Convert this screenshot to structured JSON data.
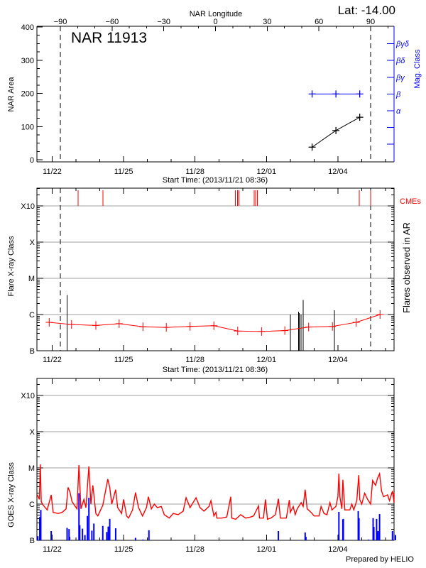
{
  "header": {
    "lat_label": "Lat: -14.00",
    "footer": "Prepared by HELIO"
  },
  "colors": {
    "axis": "#000000",
    "grid": "#a0a0a0",
    "flux_long": "#ff0000",
    "flux_short": "#0000ff",
    "mag_class": "#0000ff",
    "cme": "#ff0000",
    "background_flux": "#ff0000",
    "flares": "#000000"
  },
  "time_axis": {
    "start_label": "Start Time: (2013/11/21 08:36)",
    "xlim": [
      "11/21 08:36",
      "12/06 08:36"
    ],
    "year": 2013,
    "ticks": [
      {
        "label": "11/22",
        "t": "11/22 00:00"
      },
      {
        "label": "11/25",
        "t": "11/25 00:00"
      },
      {
        "label": "11/28",
        "t": "11/28 00:00"
      },
      {
        "label": "12/01",
        "t": "12/01 00:00"
      },
      {
        "label": "12/04",
        "t": "12/04 00:00"
      }
    ]
  },
  "chart_data": [
    {
      "type": "line",
      "title": "NAR 11913",
      "ylabel": "NAR Area",
      "ylim": [
        0,
        400
      ],
      "yticks": [
        0,
        100,
        200,
        300,
        400
      ],
      "top_axis": {
        "label": "NAR Longitude",
        "ticks": [
          -90,
          -60,
          -30,
          0,
          30,
          60,
          90
        ],
        "limb_times": [
          "11/22 08:15",
          "12/05 09:00"
        ]
      },
      "area_series": {
        "x": [
          "12/02 22:00",
          "12/03 22:00",
          "12/04 22:00"
        ],
        "values": [
          38,
          88,
          128
        ]
      },
      "right_axis": {
        "label": "Mag. Class",
        "classes": [
          "α",
          "β",
          "βγ",
          "βδ",
          "βγδ"
        ]
      },
      "mag_class_series": {
        "x": [
          "12/02 22:00",
          "12/03 22:00",
          "12/04 22:00"
        ],
        "values": [
          "β",
          "β",
          "β"
        ]
      }
    },
    {
      "type": "bar",
      "ylabel": "Flare X-ray Class",
      "right_label": "Flares observed in AR",
      "scale": "log",
      "class_ticks": [
        {
          "label": "B",
          "flux": 1e-07
        },
        {
          "label": "C",
          "flux": 1e-06
        },
        {
          "label": "M",
          "flux": 1e-05
        },
        {
          "label": "X",
          "flux": 0.0001
        },
        {
          "label": "X10",
          "flux": 0.001
        }
      ],
      "cme_label": "CMEs",
      "cmes": [
        "11/23 02:00",
        "11/24 03:00",
        "11/29 16:30",
        "11/29 18:50",
        "11/29 20:10",
        "11/30 11:45",
        "11/30 13:10",
        "11/30 14:40",
        "12/04 21:40",
        "12/05 09:00"
      ],
      "flares": [
        {
          "t": "11/22 15:00",
          "flux": 3.5e-06
        },
        {
          "t": "12/02 00:15",
          "flux": 1e-06
        },
        {
          "t": "12/02 08:20",
          "flux": 1.2e-06
        },
        {
          "t": "12/02 09:10",
          "flux": 1.1e-06
        },
        {
          "t": "12/02 11:00",
          "flux": 1e-06
        },
        {
          "t": "12/02 13:10",
          "flux": 2.5e-06
        },
        {
          "t": "12/03 20:20",
          "flux": 1.3e-06
        }
      ],
      "background_series": [
        [
          "11/21 21:00",
          6.1e-07
        ],
        [
          "11/22 19:30",
          5.3e-07
        ],
        [
          "11/23 20:00",
          5e-07
        ],
        [
          "11/24 19:30",
          5.6e-07
        ],
        [
          "11/25 19:30",
          4.6e-07
        ],
        [
          "11/26 19:00",
          4.4e-07
        ],
        [
          "11/27 19:00",
          4.7e-07
        ],
        [
          "11/28 19:00",
          4.9e-07
        ],
        [
          "11/29 19:00",
          3.5e-07
        ],
        [
          "11/30 19:00",
          3.4e-07
        ],
        [
          "12/01 18:30",
          3.6e-07
        ],
        [
          "12/02 18:30",
          4.5e-07
        ],
        [
          "12/03 18:30",
          4.7e-07
        ],
        [
          "12/04 18:30",
          6.1e-07
        ],
        [
          "12/05 18:30",
          1e-06
        ]
      ]
    },
    {
      "type": "line",
      "ylabel": "GOES X-ray Class",
      "scale": "log",
      "class_ticks": [
        {
          "label": "B",
          "flux": 1e-07
        },
        {
          "label": "C",
          "flux": 1e-06
        },
        {
          "label": "M",
          "flux": 1e-05
        },
        {
          "label": "X",
          "flux": 0.0001
        },
        {
          "label": "X10",
          "flux": 0.001
        }
      ],
      "long_channel": [
        [
          "11/21 09:00",
          1.8e-06
        ],
        [
          "11/21 11:00",
          1.35e-06
        ],
        [
          "11/21 12:00",
          1.25e-05
        ],
        [
          "11/21 13:00",
          1.16e-06
        ],
        [
          "11/21 15:00",
          9.3e-07
        ],
        [
          "11/21 19:00",
          6.9e-07
        ],
        [
          "11/21 23:00",
          1.8e-06
        ],
        [
          "11/22 01:00",
          5.9e-07
        ],
        [
          "11/22 06:00",
          5.5e-07
        ],
        [
          "11/22 10:00",
          5.9e-07
        ],
        [
          "11/22 14:00",
          7.4e-07
        ],
        [
          "11/22 16:00",
          2.9e-06
        ],
        [
          "11/22 18:00",
          2.1e-06
        ],
        [
          "11/22 20:00",
          1.16e-06
        ],
        [
          "11/23 01:00",
          7.4e-07
        ],
        [
          "11/23 03:00",
          1.2e-05
        ],
        [
          "11/23 05:00",
          7.4e-07
        ],
        [
          "11/23 08:00",
          1.35e-06
        ],
        [
          "11/23 10:00",
          8e-07
        ],
        [
          "11/23 13:00",
          1.1e-05
        ],
        [
          "11/23 15:00",
          1e-06
        ],
        [
          "11/23 17:00",
          3.3e-06
        ],
        [
          "11/23 20:00",
          5.5e-07
        ],
        [
          "11/23 22:00",
          4.7e-07
        ],
        [
          "11/24 03:00",
          9.3e-07
        ],
        [
          "11/24 08:00",
          4.9e-06
        ],
        [
          "11/24 10:00",
          2.9e-06
        ],
        [
          "11/24 12:00",
          1e-06
        ],
        [
          "11/24 16:00",
          2.5e-06
        ],
        [
          "11/24 18:00",
          8e-07
        ],
        [
          "11/24 22:00",
          5.5e-07
        ],
        [
          "11/25 00:00",
          1.35e-06
        ],
        [
          "11/25 03:00",
          4.7e-07
        ],
        [
          "11/25 05:00",
          4.1e-07
        ],
        [
          "11/25 09:00",
          6.9e-07
        ],
        [
          "11/25 12:00",
          2.1e-06
        ],
        [
          "11/25 15:00",
          8e-07
        ],
        [
          "11/25 19:00",
          4.7e-07
        ],
        [
          "11/25 23:00",
          8e-07
        ],
        [
          "11/26 01:00",
          1.6e-06
        ],
        [
          "11/26 04:00",
          7.4e-07
        ],
        [
          "11/26 07:00",
          1e-06
        ],
        [
          "11/26 10:00",
          8e-07
        ],
        [
          "11/26 14:00",
          8.6e-07
        ],
        [
          "11/26 17:00",
          5.1e-07
        ],
        [
          "11/26 22:00",
          4.1e-07
        ],
        [
          "11/27 02:00",
          5.5e-07
        ],
        [
          "11/27 07:00",
          5.1e-07
        ],
        [
          "11/27 12:00",
          6.4e-07
        ],
        [
          "11/27 15:00",
          1.5e-06
        ],
        [
          "11/27 19:00",
          8e-07
        ],
        [
          "11/28 01:00",
          1.5e-06
        ],
        [
          "11/28 05:00",
          8e-07
        ],
        [
          "11/28 09:00",
          6.4e-07
        ],
        [
          "11/28 14:00",
          8.6e-07
        ],
        [
          "11/28 16:00",
          1.25e-06
        ],
        [
          "11/28 19:00",
          4.7e-07
        ],
        [
          "11/28 21:00",
          5.9e-07
        ],
        [
          "11/28 22:00",
          4.1e-07
        ],
        [
          "11/29 03:00",
          4.1e-07
        ],
        [
          "11/29 08:00",
          4.4e-07
        ],
        [
          "11/29 12:00",
          1.6e-06
        ],
        [
          "11/29 13:00",
          4.1e-07
        ],
        [
          "11/29 17:00",
          3.8e-07
        ],
        [
          "11/29 22:00",
          5.1e-07
        ],
        [
          "11/30 03:00",
          4.1e-07
        ],
        [
          "11/30 08:00",
          4.4e-07
        ],
        [
          "11/30 11:00",
          4.7e-07
        ],
        [
          "11/30 16:00",
          8.9e-07
        ],
        [
          "11/30 17:00",
          4.1e-07
        ],
        [
          "11/30 21:00",
          4.1e-07
        ],
        [
          "11/30 23:00",
          1.35e-06
        ],
        [
          "12/01 01:00",
          3.8e-07
        ],
        [
          "12/01 05:00",
          4.2e-07
        ],
        [
          "12/01 09:00",
          5.1e-07
        ],
        [
          "12/01 12:00",
          1.4e-06
        ],
        [
          "12/01 14:00",
          4.1e-07
        ],
        [
          "12/01 20:00",
          4.1e-07
        ],
        [
          "12/01 23:00",
          1.3e-06
        ],
        [
          "12/02 00:00",
          5.9e-07
        ],
        [
          "12/02 03:00",
          8.6e-07
        ],
        [
          "12/02 05:00",
          5.1e-07
        ],
        [
          "12/02 07:00",
          7.4e-07
        ],
        [
          "12/02 11:00",
          1.1e-06
        ],
        [
          "12/02 13:00",
          8.6e-07
        ],
        [
          "12/02 15:00",
          2.5e-06
        ],
        [
          "12/02 17:00",
          7.4e-07
        ],
        [
          "12/02 21:00",
          5.9e-07
        ],
        [
          "12/03 00:00",
          4.7e-07
        ],
        [
          "12/03 05:00",
          4.7e-07
        ],
        [
          "12/03 07:00",
          8.6e-07
        ],
        [
          "12/03 10:00",
          5.5e-07
        ],
        [
          "12/03 13:00",
          5.1e-07
        ],
        [
          "12/03 16:00",
          1.1e-06
        ],
        [
          "12/03 18:00",
          6.9e-07
        ],
        [
          "12/03 22:00",
          8.6e-07
        ],
        [
          "12/04 00:00",
          1.6e-06
        ],
        [
          "12/04 01:00",
          6.9e-06
        ],
        [
          "12/04 02:00",
          1.6e-06
        ],
        [
          "12/04 04:00",
          7.4e-07
        ],
        [
          "12/04 05:00",
          4.7e-06
        ],
        [
          "12/04 07:00",
          6.9e-07
        ],
        [
          "12/04 12:00",
          6.9e-07
        ],
        [
          "12/04 14:00",
          1e-06
        ],
        [
          "12/04 16:00",
          6.9e-07
        ],
        [
          "12/04 19:00",
          1.25e-06
        ],
        [
          "12/04 21:00",
          6.3e-06
        ],
        [
          "12/04 22:00",
          1.35e-06
        ],
        [
          "12/05 00:00",
          1e-06
        ],
        [
          "12/05 03:00",
          2e-06
        ],
        [
          "12/05 06:00",
          1.35e-06
        ],
        [
          "12/05 09:00",
          1e-06
        ],
        [
          "12/05 11:00",
          4.5e-06
        ],
        [
          "12/05 14:00",
          3.3e-06
        ],
        [
          "12/05 16:00",
          5.2e-06
        ],
        [
          "12/05 18:00",
          6.9e-06
        ],
        [
          "12/05 20:00",
          2.3e-06
        ],
        [
          "12/05 22:00",
          1.6e-06
        ],
        [
          "12/06 02:00",
          1.8e-06
        ],
        [
          "12/06 04:00",
          1.25e-06
        ],
        [
          "12/06 07:00",
          2.3e-06
        ],
        [
          "12/06 09:00",
          1.1e-06
        ],
        [
          "12/06 10:00",
          2e-06
        ]
      ],
      "short_channel": [
        [
          "11/21 09:30",
          1.3e-07
        ],
        [
          "11/21 11:30",
          4.4e-07
        ],
        [
          "11/21 12:30",
          6.9e-07
        ],
        [
          "11/21 23:00",
          1.8e-07
        ],
        [
          "11/22 15:00",
          2.2e-07
        ],
        [
          "11/22 17:00",
          2.05e-07
        ],
        [
          "11/22 17:30",
          1.25e-07
        ],
        [
          "11/23 03:00",
          2e-06
        ],
        [
          "11/23 03:45",
          2.6e-07
        ],
        [
          "11/23 06:30",
          2.1e-07
        ],
        [
          "11/23 09:00",
          1.4e-07
        ],
        [
          "11/23 11:30",
          4.7e-07
        ],
        [
          "11/23 13:00",
          1.5e-06
        ],
        [
          "11/23 16:00",
          1.85e-07
        ],
        [
          "11/23 18:00",
          2.9e-07
        ],
        [
          "11/24 03:00",
          2.5e-07
        ],
        [
          "11/24 07:00",
          1.7e-07
        ],
        [
          "11/24 08:30",
          2.4e-07
        ],
        [
          "11/24 10:00",
          3.9e-07
        ],
        [
          "11/24 16:00",
          2.15e-07
        ],
        [
          "11/25 12:00",
          1.17e-07
        ],
        [
          "11/25 19:30",
          1.05e-07
        ],
        [
          "11/26 01:30",
          1.9e-07
        ],
        [
          "12/01 12:00",
          1.8e-07
        ],
        [
          "12/02 15:00",
          1.65e-07
        ],
        [
          "12/02 15:45",
          1.25e-07
        ],
        [
          "12/04 01:00",
          6.1e-07
        ],
        [
          "12/04 05:00",
          3.8e-07
        ],
        [
          "12/04 05:30",
          3.9e-07
        ],
        [
          "12/04 20:30",
          6.4e-07
        ],
        [
          "12/04 21:15",
          4.1e-07
        ],
        [
          "12/05 07:00",
          1.05e-07
        ],
        [
          "12/05 11:30",
          4.1e-07
        ],
        [
          "12/05 12:15",
          2.35e-07
        ],
        [
          "12/05 15:00",
          3.9e-07
        ],
        [
          "12/05 16:00",
          1.7e-07
        ],
        [
          "12/05 16:30",
          1.8e-07
        ],
        [
          "12/05 18:00",
          5.3e-07
        ],
        [
          "12/06 07:00",
          1.8e-07
        ],
        [
          "12/06 10:00",
          1.4e-07
        ]
      ]
    }
  ]
}
